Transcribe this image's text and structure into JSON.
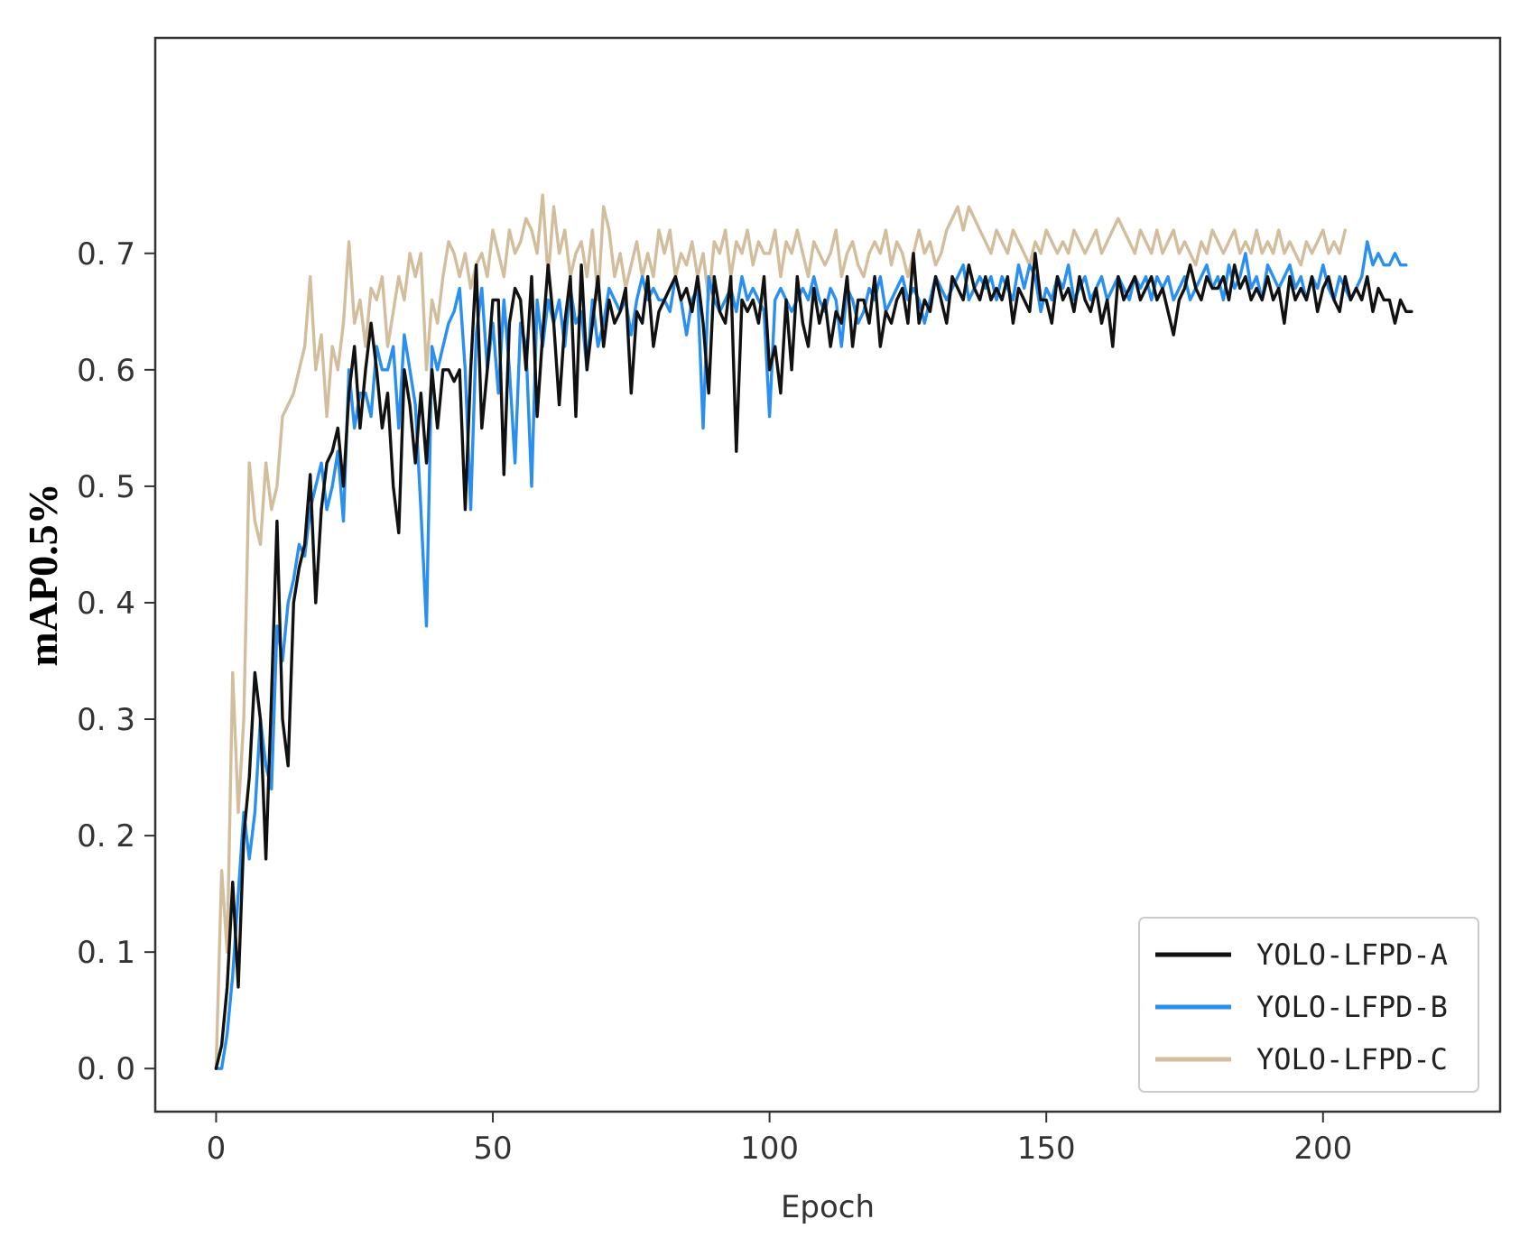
{
  "chart_data": {
    "type": "line",
    "title": "",
    "xlabel": "Epoch",
    "ylabel": "mAP0.5%",
    "xlim": [
      -11,
      232
    ],
    "ylim": [
      -0.037,
      0.885
    ],
    "xticks": [
      0,
      50,
      100,
      150,
      200
    ],
    "xtick_labels": [
      "0",
      "50",
      "100",
      "150",
      "200"
    ],
    "yticks": [
      0.0,
      0.1,
      0.2,
      0.3,
      0.4,
      0.5,
      0.6,
      0.7
    ],
    "ytick_labels": [
      "0. 0",
      "0. 1",
      "0. 2",
      "0. 3",
      "0. 4",
      "0. 5",
      "0. 6",
      "0. 7"
    ],
    "grid": false,
    "legend_position": "bottom-right",
    "x_start": 0,
    "series": [
      {
        "name": "YOLO-LFPD-A",
        "color": "#111111",
        "values": [
          0.0,
          0.02,
          0.07,
          0.16,
          0.07,
          0.2,
          0.25,
          0.34,
          0.3,
          0.18,
          0.32,
          0.47,
          0.3,
          0.26,
          0.4,
          0.43,
          0.45,
          0.51,
          0.4,
          0.48,
          0.52,
          0.53,
          0.55,
          0.5,
          0.58,
          0.62,
          0.55,
          0.6,
          0.64,
          0.6,
          0.55,
          0.58,
          0.5,
          0.46,
          0.6,
          0.57,
          0.52,
          0.58,
          0.52,
          0.6,
          0.55,
          0.6,
          0.6,
          0.59,
          0.6,
          0.48,
          0.6,
          0.69,
          0.55,
          0.6,
          0.66,
          0.66,
          0.51,
          0.64,
          0.67,
          0.66,
          0.6,
          0.68,
          0.56,
          0.63,
          0.69,
          0.64,
          0.57,
          0.64,
          0.68,
          0.56,
          0.69,
          0.6,
          0.64,
          0.68,
          0.62,
          0.66,
          0.64,
          0.65,
          0.67,
          0.58,
          0.65,
          0.64,
          0.68,
          0.62,
          0.65,
          0.66,
          0.67,
          0.68,
          0.66,
          0.67,
          0.65,
          0.68,
          0.64,
          0.58,
          0.68,
          0.65,
          0.64,
          0.68,
          0.53,
          0.66,
          0.65,
          0.66,
          0.64,
          0.68,
          0.6,
          0.62,
          0.58,
          0.66,
          0.6,
          0.68,
          0.64,
          0.62,
          0.67,
          0.64,
          0.66,
          0.62,
          0.65,
          0.64,
          0.68,
          0.62,
          0.66,
          0.66,
          0.64,
          0.68,
          0.62,
          0.65,
          0.64,
          0.66,
          0.67,
          0.64,
          0.7,
          0.64,
          0.66,
          0.65,
          0.68,
          0.66,
          0.64,
          0.68,
          0.67,
          0.66,
          0.69,
          0.67,
          0.66,
          0.68,
          0.66,
          0.67,
          0.66,
          0.68,
          0.64,
          0.67,
          0.66,
          0.65,
          0.7,
          0.66,
          0.66,
          0.64,
          0.68,
          0.66,
          0.67,
          0.65,
          0.68,
          0.66,
          0.65,
          0.67,
          0.64,
          0.66,
          0.62,
          0.68,
          0.66,
          0.67,
          0.68,
          0.66,
          0.67,
          0.68,
          0.66,
          0.67,
          0.65,
          0.63,
          0.66,
          0.67,
          0.69,
          0.67,
          0.66,
          0.68,
          0.67,
          0.67,
          0.68,
          0.66,
          0.69,
          0.67,
          0.68,
          0.66,
          0.67,
          0.66,
          0.68,
          0.66,
          0.67,
          0.64,
          0.68,
          0.66,
          0.67,
          0.66,
          0.68,
          0.65,
          0.67,
          0.68,
          0.66,
          0.65,
          0.68,
          0.66,
          0.67,
          0.66,
          0.68,
          0.65,
          0.67,
          0.66,
          0.66,
          0.64,
          0.66,
          0.65,
          0.65
        ]
      },
      {
        "name": "YOLO-LFPD-B",
        "color": "#2b8fef",
        "values": [
          0.0,
          0.0,
          0.03,
          0.08,
          0.15,
          0.22,
          0.18,
          0.22,
          0.3,
          0.26,
          0.24,
          0.38,
          0.35,
          0.4,
          0.42,
          0.45,
          0.44,
          0.48,
          0.5,
          0.52,
          0.48,
          0.5,
          0.53,
          0.47,
          0.6,
          0.55,
          0.58,
          0.58,
          0.56,
          0.62,
          0.6,
          0.6,
          0.62,
          0.55,
          0.63,
          0.6,
          0.57,
          0.48,
          0.38,
          0.62,
          0.6,
          0.62,
          0.64,
          0.65,
          0.67,
          0.6,
          0.48,
          0.63,
          0.67,
          0.6,
          0.64,
          0.58,
          0.66,
          0.6,
          0.52,
          0.64,
          0.62,
          0.5,
          0.66,
          0.62,
          0.66,
          0.64,
          0.66,
          0.62,
          0.67,
          0.64,
          0.65,
          0.6,
          0.66,
          0.62,
          0.64,
          0.67,
          0.66,
          0.65,
          0.66,
          0.63,
          0.66,
          0.68,
          0.66,
          0.67,
          0.66,
          0.66,
          0.65,
          0.68,
          0.66,
          0.63,
          0.66,
          0.67,
          0.55,
          0.68,
          0.66,
          0.65,
          0.66,
          0.67,
          0.65,
          0.68,
          0.66,
          0.67,
          0.66,
          0.65,
          0.56,
          0.66,
          0.67,
          0.66,
          0.65,
          0.66,
          0.67,
          0.66,
          0.68,
          0.66,
          0.65,
          0.67,
          0.66,
          0.62,
          0.67,
          0.66,
          0.64,
          0.65,
          0.67,
          0.66,
          0.68,
          0.65,
          0.66,
          0.67,
          0.68,
          0.66,
          0.67,
          0.66,
          0.64,
          0.66,
          0.68,
          0.67,
          0.66,
          0.67,
          0.68,
          0.69,
          0.66,
          0.67,
          0.68,
          0.67,
          0.68,
          0.66,
          0.68,
          0.67,
          0.66,
          0.69,
          0.67,
          0.69,
          0.68,
          0.65,
          0.67,
          0.66,
          0.68,
          0.67,
          0.69,
          0.66,
          0.67,
          0.68,
          0.66,
          0.67,
          0.68,
          0.66,
          0.67,
          0.68,
          0.67,
          0.66,
          0.68,
          0.67,
          0.68,
          0.66,
          0.68,
          0.67,
          0.68,
          0.66,
          0.67,
          0.68,
          0.66,
          0.67,
          0.68,
          0.69,
          0.67,
          0.68,
          0.66,
          0.69,
          0.67,
          0.68,
          0.7,
          0.67,
          0.68,
          0.66,
          0.69,
          0.68,
          0.67,
          0.68,
          0.69,
          0.67,
          0.68,
          0.66,
          0.68,
          0.67,
          0.69,
          0.67,
          0.66,
          0.68,
          0.67,
          0.66,
          0.67,
          0.68,
          0.71,
          0.69,
          0.7,
          0.69,
          0.69,
          0.7,
          0.69,
          0.69
        ]
      },
      {
        "name": "YOLO-LFPD-C",
        "color": "#d2bd9c",
        "values": [
          0.0,
          0.17,
          0.1,
          0.34,
          0.22,
          0.3,
          0.52,
          0.47,
          0.45,
          0.52,
          0.48,
          0.5,
          0.56,
          0.57,
          0.58,
          0.6,
          0.62,
          0.68,
          0.6,
          0.63,
          0.56,
          0.62,
          0.6,
          0.64,
          0.71,
          0.64,
          0.66,
          0.62,
          0.67,
          0.66,
          0.68,
          0.62,
          0.65,
          0.68,
          0.66,
          0.7,
          0.68,
          0.7,
          0.6,
          0.66,
          0.64,
          0.68,
          0.71,
          0.7,
          0.68,
          0.7,
          0.67,
          0.69,
          0.7,
          0.68,
          0.72,
          0.7,
          0.68,
          0.72,
          0.7,
          0.71,
          0.73,
          0.72,
          0.7,
          0.75,
          0.68,
          0.74,
          0.7,
          0.72,
          0.68,
          0.7,
          0.71,
          0.68,
          0.72,
          0.66,
          0.74,
          0.72,
          0.68,
          0.7,
          0.67,
          0.69,
          0.71,
          0.68,
          0.7,
          0.68,
          0.72,
          0.7,
          0.72,
          0.68,
          0.7,
          0.69,
          0.71,
          0.68,
          0.7,
          0.66,
          0.71,
          0.7,
          0.72,
          0.68,
          0.71,
          0.7,
          0.72,
          0.69,
          0.71,
          0.7,
          0.7,
          0.72,
          0.68,
          0.71,
          0.7,
          0.72,
          0.7,
          0.68,
          0.71,
          0.7,
          0.69,
          0.7,
          0.72,
          0.68,
          0.7,
          0.71,
          0.69,
          0.68,
          0.7,
          0.71,
          0.7,
          0.72,
          0.69,
          0.71,
          0.7,
          0.68,
          0.7,
          0.72,
          0.7,
          0.71,
          0.69,
          0.7,
          0.72,
          0.73,
          0.74,
          0.72,
          0.74,
          0.73,
          0.72,
          0.71,
          0.7,
          0.72,
          0.71,
          0.7,
          0.72,
          0.71,
          0.7,
          0.69,
          0.71,
          0.7,
          0.72,
          0.71,
          0.7,
          0.71,
          0.7,
          0.72,
          0.71,
          0.7,
          0.71,
          0.72,
          0.7,
          0.71,
          0.72,
          0.73,
          0.72,
          0.71,
          0.7,
          0.72,
          0.71,
          0.7,
          0.72,
          0.7,
          0.71,
          0.72,
          0.7,
          0.71,
          0.7,
          0.69,
          0.71,
          0.7,
          0.72,
          0.71,
          0.7,
          0.71,
          0.72,
          0.7,
          0.71,
          0.7,
          0.72,
          0.7,
          0.71,
          0.7,
          0.72,
          0.7,
          0.71,
          0.7,
          0.69,
          0.71,
          0.7,
          0.71,
          0.72,
          0.7,
          0.71,
          0.7,
          0.72
        ]
      }
    ]
  }
}
